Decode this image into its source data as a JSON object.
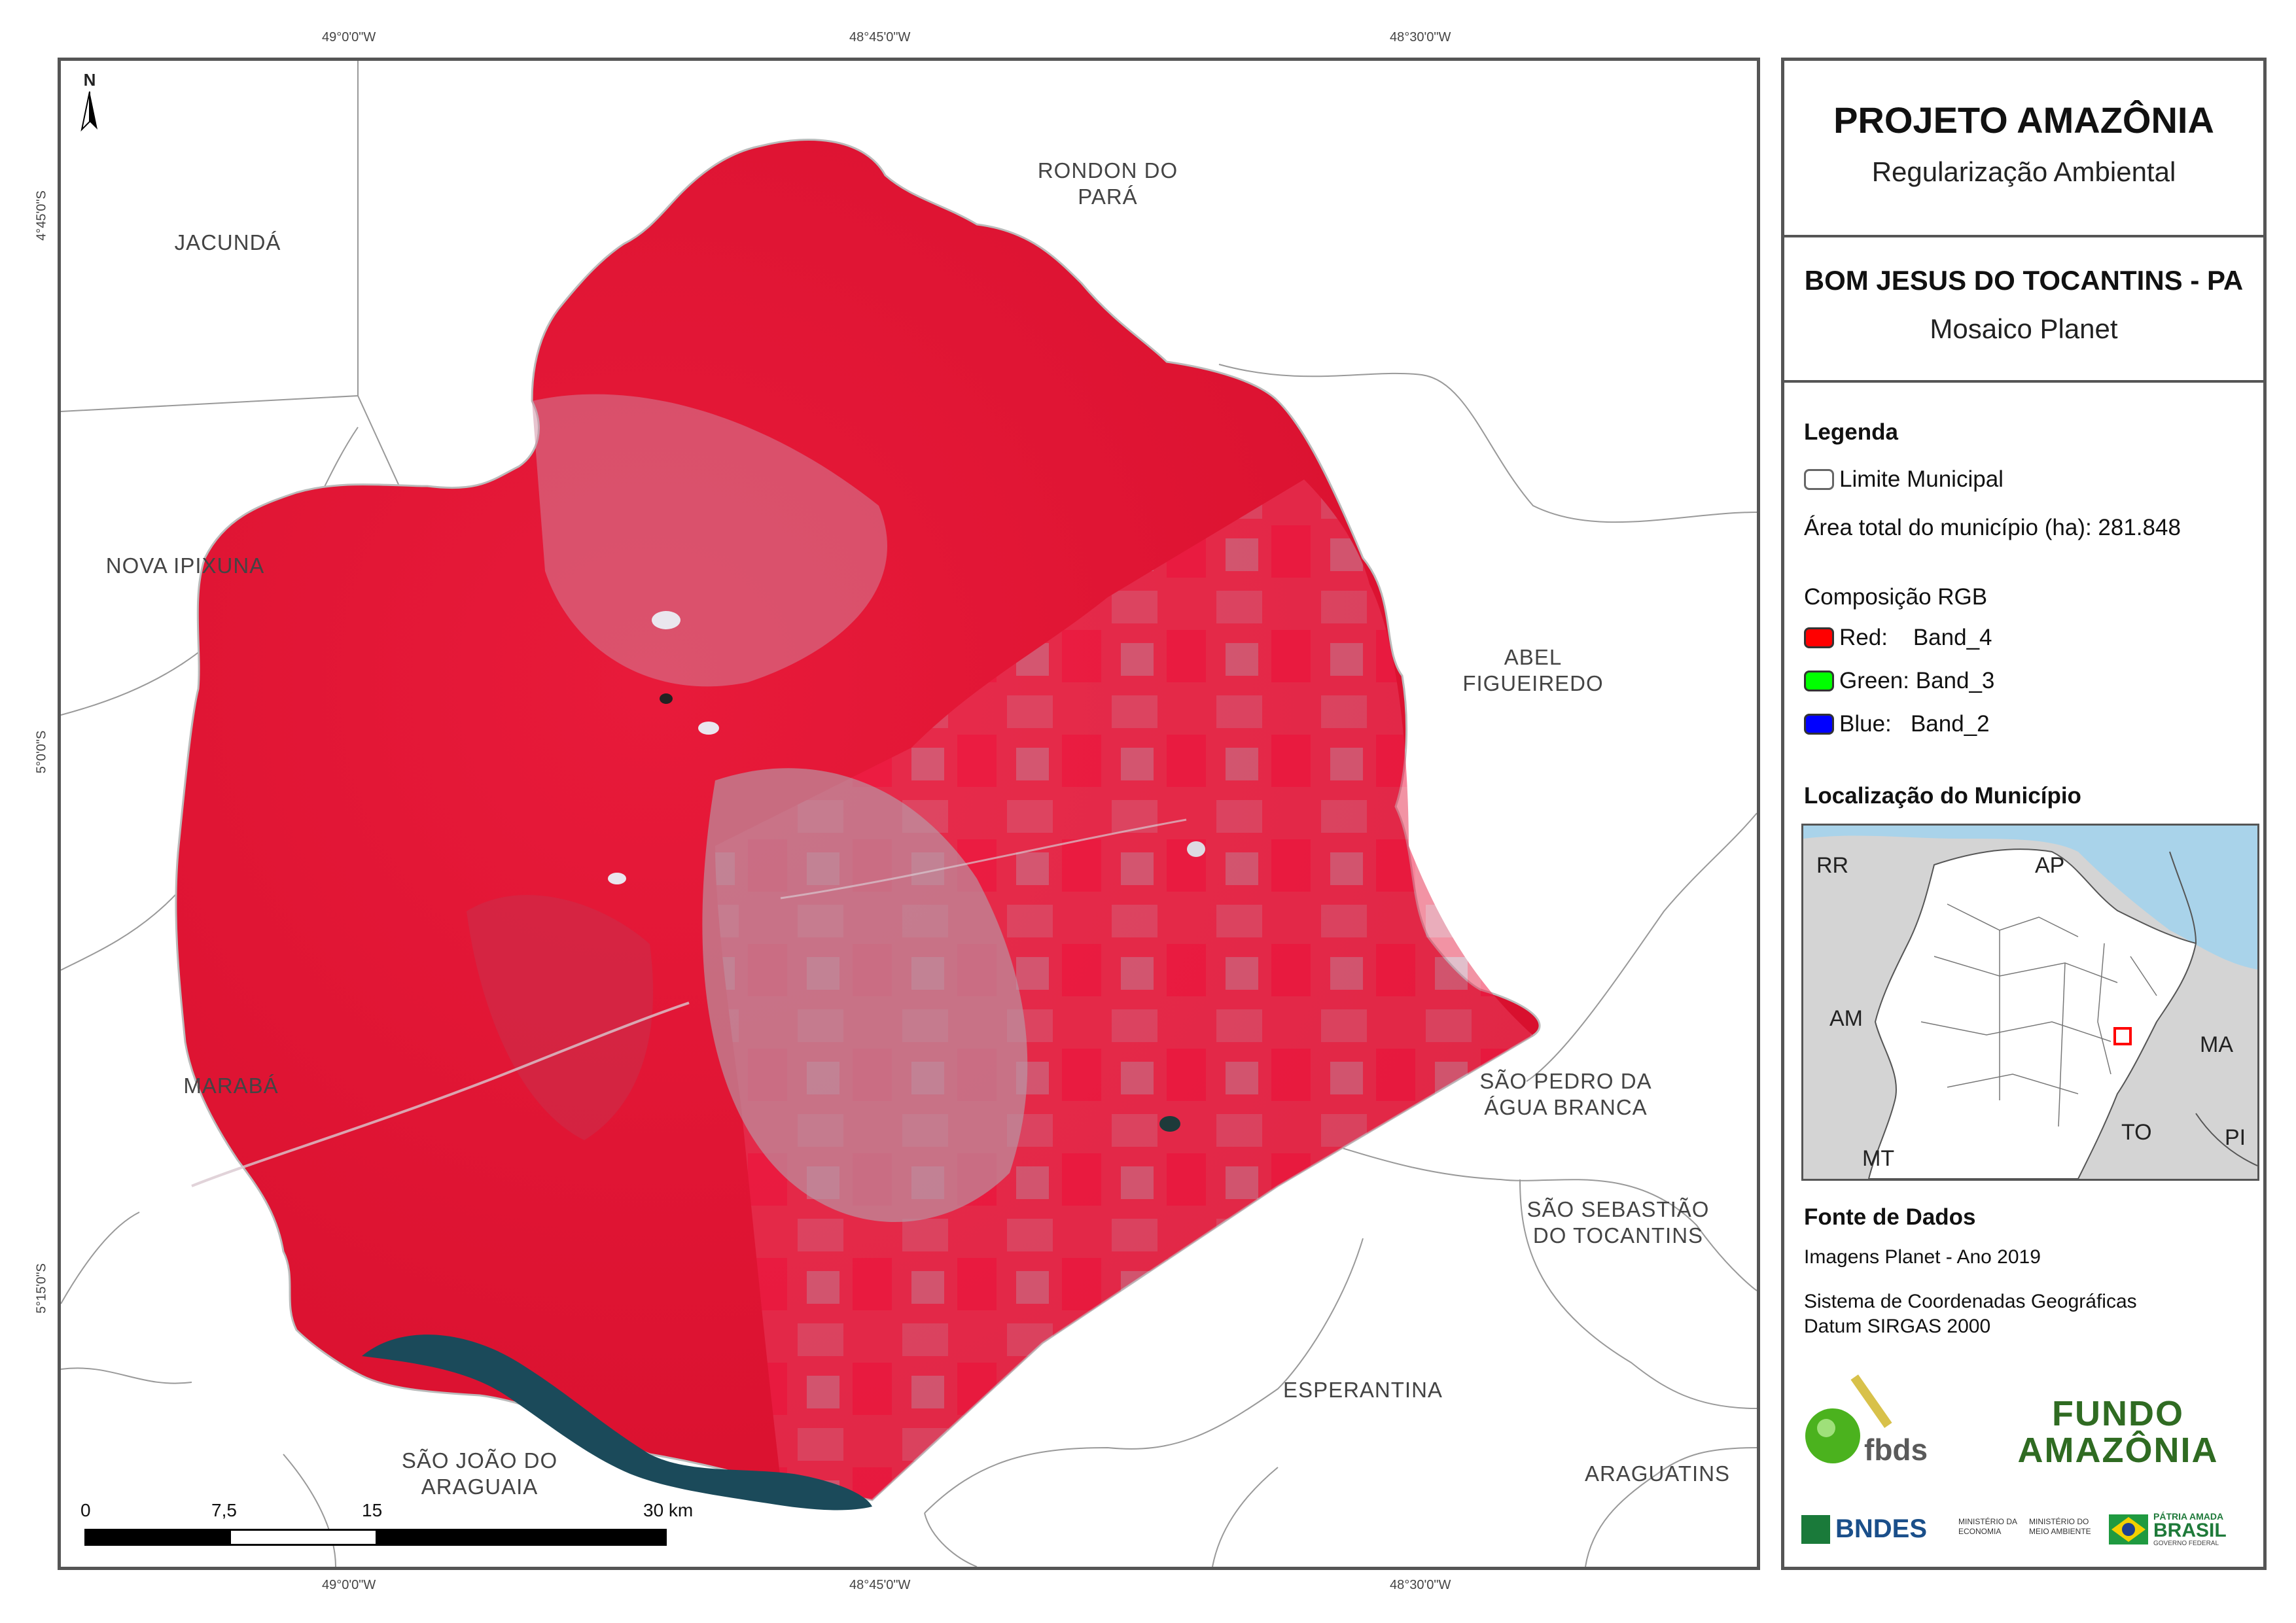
{
  "graticule": {
    "top": [
      "49°0'0\"W",
      "48°45'0\"W",
      "48°30'0\"W"
    ],
    "bottom": [
      "49°0'0\"W",
      "48°45'0\"W",
      "48°30'0\"W"
    ],
    "left": [
      "4°45'0\"S",
      "5°0'0\"S",
      "5°15'0\"S"
    ]
  },
  "north_arrow": "N",
  "municipalities": {
    "rondon": "RONDON DO PARÁ",
    "jacunda": "JACUNDÁ",
    "nova_ipixuna": "NOVA IPIXUNA",
    "abel": "ABEL FIGUEIREDO",
    "maraba": "MARABÁ",
    "sao_pedro": "SÃO PEDRO DA ÁGUA BRANCA",
    "sao_sebastiao": "SÃO SEBASTIÃO DO TOCANTINS",
    "esperantina": "ESPERANTINA",
    "sao_joao": "SÃO JOÃO DO ARAGUAIA",
    "araguatins": "ARAGUATINS"
  },
  "scalebar": {
    "labels": [
      "0",
      "7,5",
      "15",
      "30 km"
    ]
  },
  "panel": {
    "project_title": "PROJETO AMAZÔNIA",
    "project_subtitle": "Regularização Ambiental",
    "map_title": "BOM JESUS DO TOCANTINS - PA",
    "map_subtitle": "Mosaico Planet",
    "legend": {
      "heading": "Legenda",
      "boundary": "Limite Municipal",
      "area": "Área total do município (ha): 281.848",
      "rgb_heading": "Composição RGB",
      "red": "Red:    Band_4",
      "green": "Green: Band_3",
      "blue": "Blue:   Band_2",
      "colors": {
        "red": "#ff0000",
        "green": "#00ff00",
        "blue": "#0000ff",
        "boundary": "#ffffff"
      }
    },
    "location": {
      "heading": "Localização do Município",
      "states": [
        "RR",
        "AP",
        "AM",
        "MA",
        "TO",
        "MT",
        "PI"
      ]
    },
    "sources": {
      "heading": "Fonte de Dados",
      "line1": "Imagens Planet - Ano 2019",
      "line2": "Sistema de Coordenadas Geográficas",
      "line3": "Datum SIRGAS 2000"
    },
    "logos": {
      "fbds": "fbds",
      "fundo_1": "FUNDO",
      "fundo_2": "AMAZÔNIA",
      "bndes": "BNDES",
      "min_economia": "MINISTÉRIO DA ECONOMIA",
      "min_ambiente": "MINISTÉRIO DO MEIO AMBIENTE",
      "brasil_1": "PÁTRIA AMADA",
      "brasil_2": "BRASIL",
      "brasil_3": "GOVERNO FEDERAL"
    }
  }
}
